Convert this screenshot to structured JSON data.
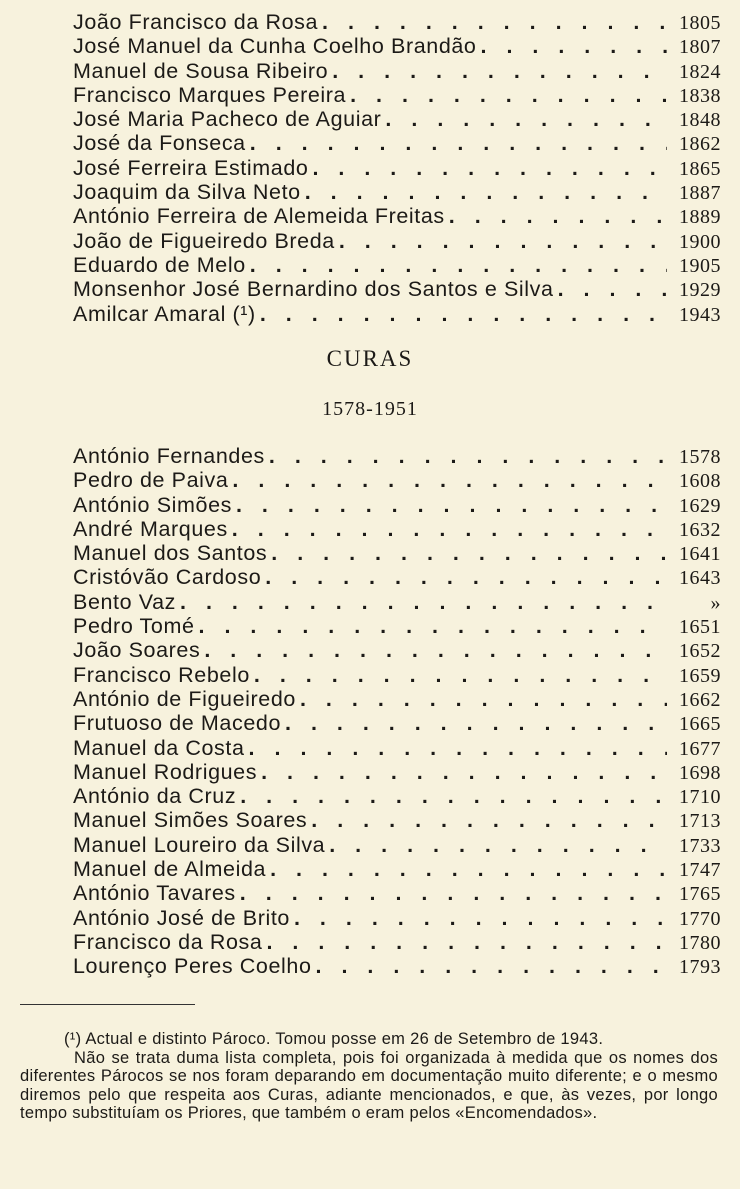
{
  "priors": [
    {
      "name": "João Francisco da Rosa",
      "year": "1805"
    },
    {
      "name": "José Manuel da Cunha Coelho Brandão",
      "year": "1807"
    },
    {
      "name": "Manuel de Sousa Ribeiro",
      "year": "1824"
    },
    {
      "name": "Francisco Marques Pereira",
      "year": "1838"
    },
    {
      "name": "José Maria Pacheco de Aguiar",
      "year": "1848"
    },
    {
      "name": "José da Fonseca",
      "year": "1862"
    },
    {
      "name": "José Ferreira Estimado",
      "year": "1865"
    },
    {
      "name": "Joaquim da Silva Neto",
      "year": "1887"
    },
    {
      "name": "António Ferreira de Alemeida Freitas",
      "year": "1889"
    },
    {
      "name": "João de Figueiredo Breda",
      "year": "1900"
    },
    {
      "name": "Eduardo de Melo",
      "year": "1905"
    },
    {
      "name": "Monsenhor José Bernardino dos Santos e Silva",
      "year": "1929"
    },
    {
      "name": "Amilcar Amaral (¹)",
      "year": "1943"
    }
  ],
  "curas": {
    "title": "CURAS",
    "range": "1578-1951",
    "items": [
      {
        "name": "António Fernandes",
        "year": "1578"
      },
      {
        "name": "Pedro de Paiva",
        "year": "1608"
      },
      {
        "name": "António Simões",
        "year": "1629"
      },
      {
        "name": "André Marques",
        "year": "1632"
      },
      {
        "name": "Manuel dos Santos",
        "year": "1641"
      },
      {
        "name": "Cristóvão Cardoso",
        "year": "1643"
      },
      {
        "name": "Bento Vaz",
        "year": "»"
      },
      {
        "name": "Pedro Tomé",
        "year": "1651"
      },
      {
        "name": "João Soares",
        "year": "1652"
      },
      {
        "name": "Francisco Rebelo",
        "year": "1659"
      },
      {
        "name": "António de Figueiredo",
        "year": "1662"
      },
      {
        "name": "Frutuoso de Macedo",
        "year": "1665"
      },
      {
        "name": "Manuel da Costa",
        "year": "1677"
      },
      {
        "name": "Manuel Rodrigues",
        "year": "1698"
      },
      {
        "name": "António da Cruz",
        "year": "1710"
      },
      {
        "name": "Manuel Simões Soares",
        "year": "1713"
      },
      {
        "name": "Manuel Loureiro da Silva",
        "year": "1733"
      },
      {
        "name": "Manuel de Almeida",
        "year": "1747"
      },
      {
        "name": "António Tavares",
        "year": "1765"
      },
      {
        "name": "António José de Brito",
        "year": "1770"
      },
      {
        "name": "Francisco da Rosa",
        "year": "1780"
      },
      {
        "name": "Lourenço Peres Coelho",
        "year": "1793"
      }
    ]
  },
  "footnotes": {
    "note1": "(¹) Actual e distinto Pároco. Tomou posse em 26 de Setembro de 1943.",
    "note2": "Não se trata duma lista completa, pois foi organizada à medida que os nomes dos diferentes Párocos se nos foram deparando em documentação muito diferente; e o mesmo diremos pelo que respeita aos Curas, adiante mencionados, e que, às vezes, por longo tempo substituíam os Priores, que também o eram pelos «Encomendados»."
  }
}
